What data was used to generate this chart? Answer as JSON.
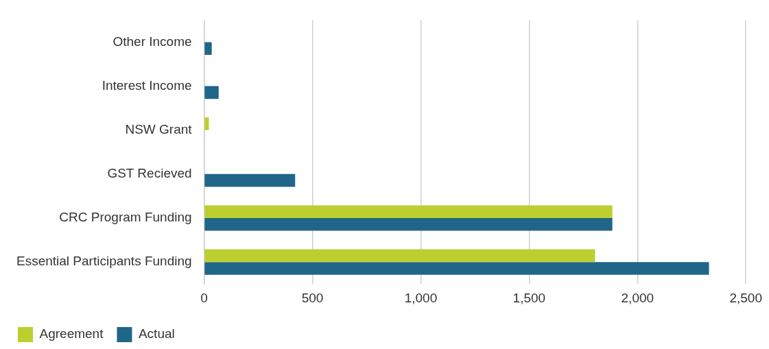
{
  "chart_data": {
    "type": "bar",
    "orientation": "horizontal",
    "categories": [
      "Other Income",
      "Interest Income",
      "NSW Grant",
      "GST Recieved",
      "CRC Program Funding",
      "Essential Participants Funding"
    ],
    "series": [
      {
        "name": "Agreement",
        "color": "#bdcf2f",
        "values": [
          null,
          null,
          22,
          null,
          1884,
          1804
        ]
      },
      {
        "name": "Actual",
        "color": "#1f6688",
        "values": [
          35,
          67,
          null,
          420,
          1884,
          2330
        ]
      }
    ],
    "xlim": [
      0,
      2500
    ],
    "xticks": [
      0,
      500,
      {
        "value": 1000,
        "label": "1,000"
      },
      {
        "value": 1500,
        "label": "1,500"
      },
      {
        "value": 2000,
        "label": "2,000"
      },
      {
        "value": 2500,
        "label": "2,500"
      }
    ],
    "grid": "x",
    "legend": "bottom left"
  }
}
